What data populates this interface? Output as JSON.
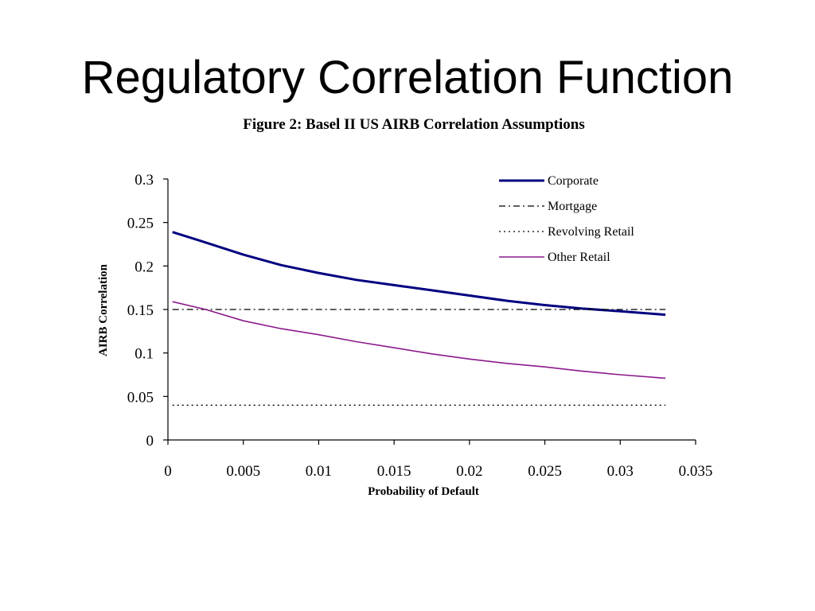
{
  "slide": {
    "title": "Regulatory Correlation Function"
  },
  "chart_data": {
    "type": "line",
    "title": "Figure 2: Basel II US AIRB Correlation Assumptions",
    "xlabel": "Probability of Default",
    "ylabel": "AIRB Correlation",
    "xlim": [
      0,
      0.035
    ],
    "ylim": [
      0,
      0.3
    ],
    "xticks": [
      "0",
      "0.005",
      "0.01",
      "0.015",
      "0.02",
      "0.025",
      "0.03",
      "0.035"
    ],
    "yticks": [
      "0",
      "0.05",
      "0.1",
      "0.15",
      "0.2",
      "0.25",
      "0.3"
    ],
    "grid": false,
    "legend_position": "top-right",
    "x": [
      0.0003,
      0.0025,
      0.005,
      0.0075,
      0.01,
      0.0125,
      0.015,
      0.0175,
      0.02,
      0.0225,
      0.025,
      0.0275,
      0.03,
      0.033
    ],
    "series": [
      {
        "name": "Corporate",
        "color": "#000080",
        "style": "solid",
        "values": [
          0.239,
          0.227,
          0.213,
          0.201,
          0.192,
          0.184,
          0.178,
          0.172,
          0.166,
          0.16,
          0.155,
          0.151,
          0.148,
          0.144
        ]
      },
      {
        "name": "Mortgage",
        "color": "#000000",
        "style": "dashdot",
        "values": [
          0.15,
          0.15,
          0.15,
          0.15,
          0.15,
          0.15,
          0.15,
          0.15,
          0.15,
          0.15,
          0.15,
          0.15,
          0.15,
          0.15
        ]
      },
      {
        "name": "Revolving Retail",
        "color": "#000000",
        "style": "dotted",
        "values": [
          0.04,
          0.04,
          0.04,
          0.04,
          0.04,
          0.04,
          0.04,
          0.04,
          0.04,
          0.04,
          0.04,
          0.04,
          0.04,
          0.04
        ]
      },
      {
        "name": "Other Retail",
        "color": "#8b1a8b",
        "style": "solid",
        "values": [
          0.159,
          0.15,
          0.137,
          0.128,
          0.121,
          0.113,
          0.106,
          0.099,
          0.093,
          0.088,
          0.084,
          0.079,
          0.075,
          0.071
        ]
      }
    ]
  }
}
